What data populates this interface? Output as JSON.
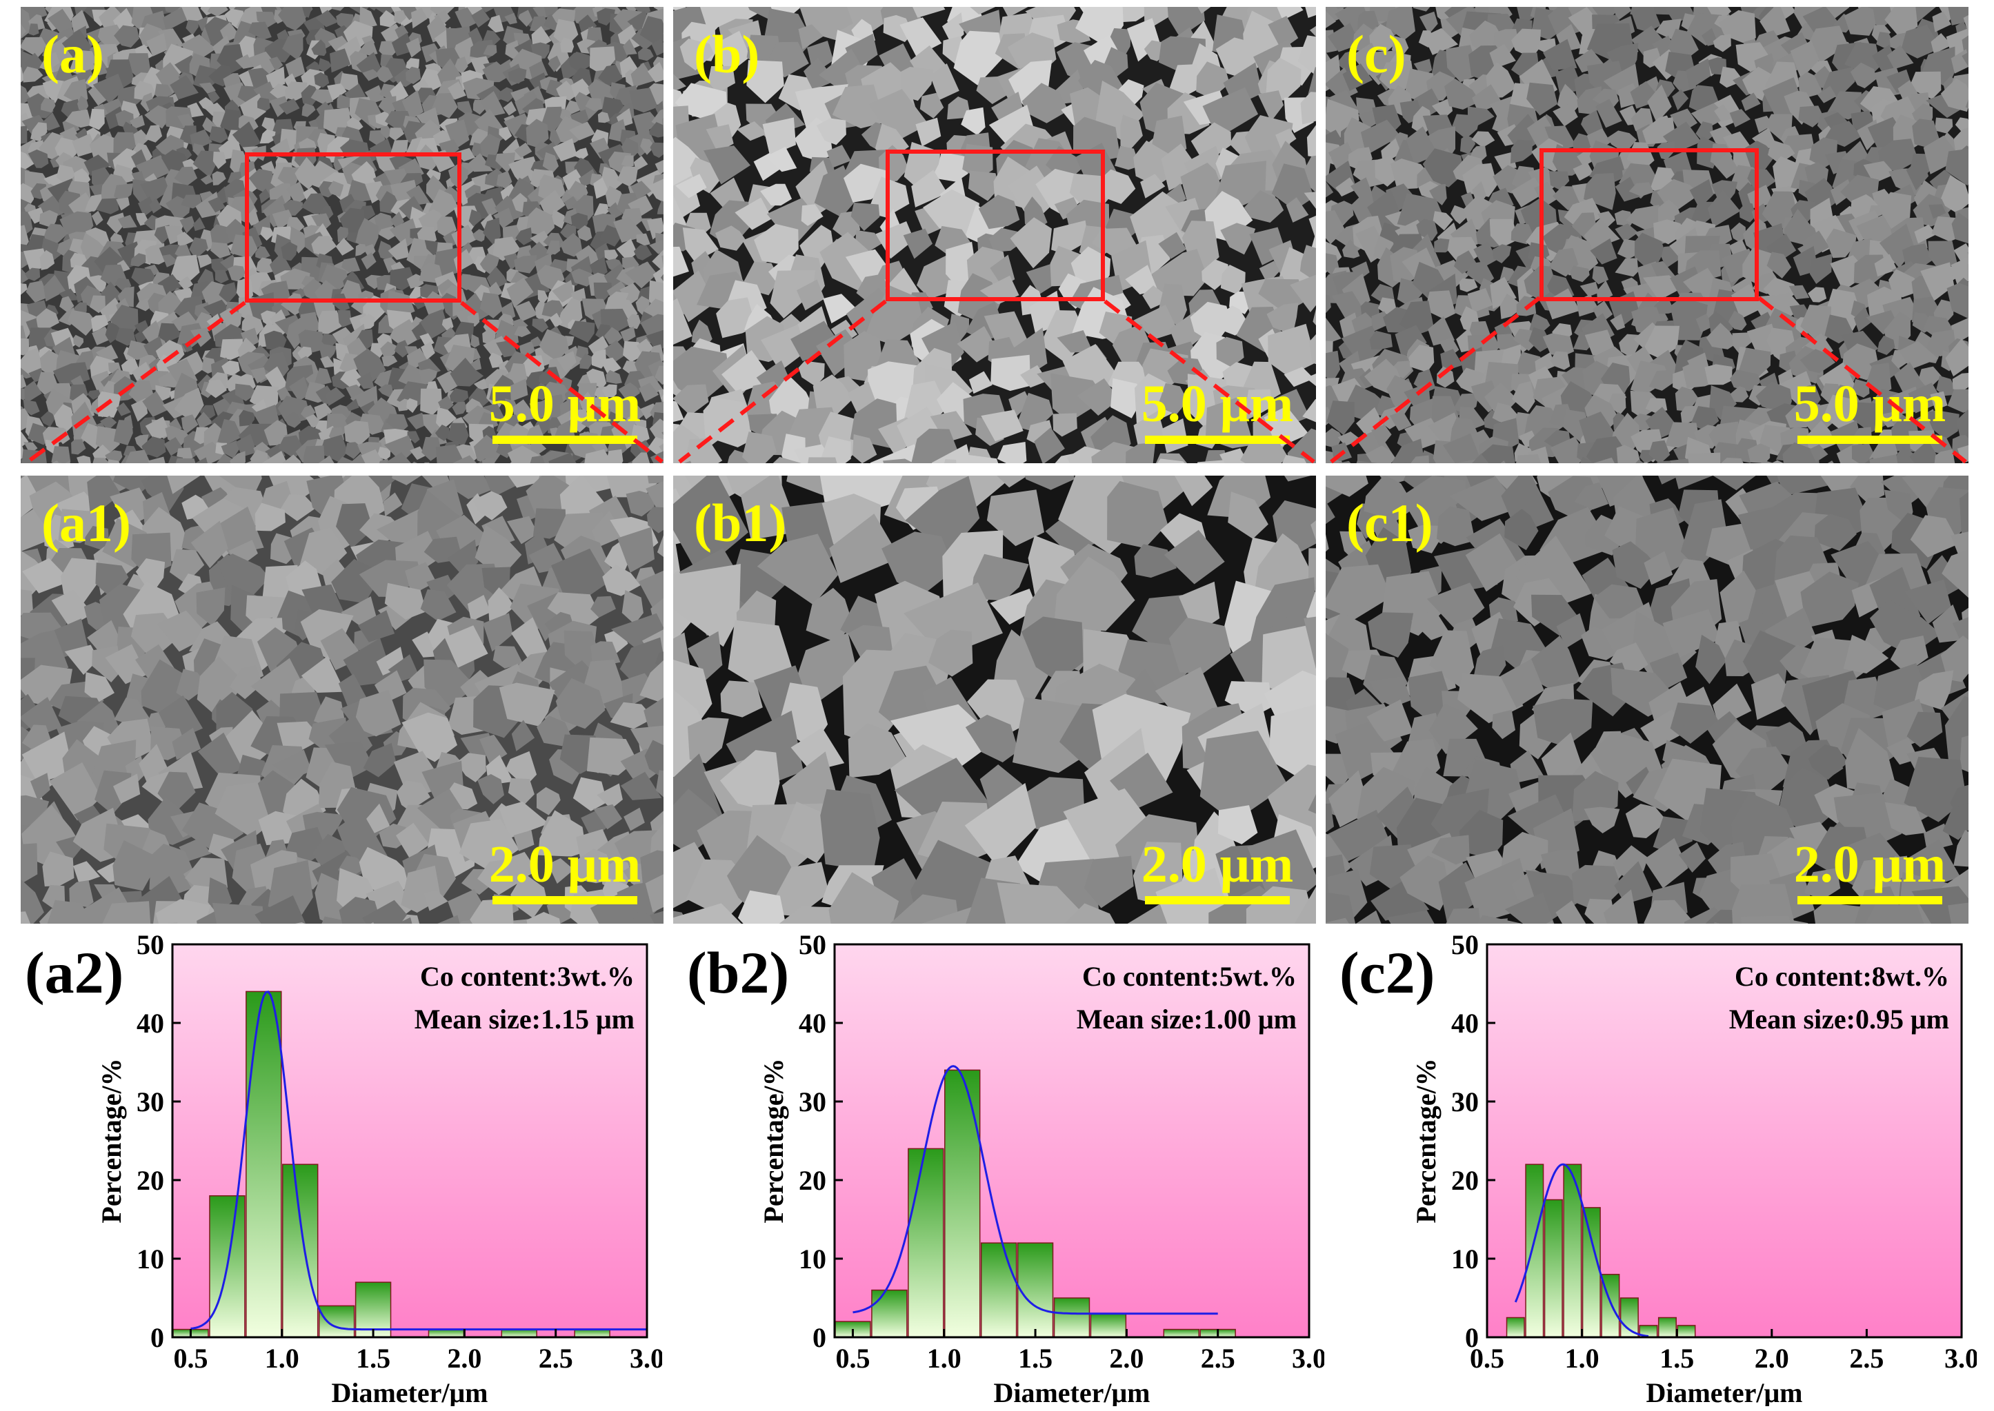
{
  "panels": [
    {
      "id": "a",
      "label": "(a)",
      "scale": "5.0 μm",
      "tone": "dark"
    },
    {
      "id": "b",
      "label": "(b)",
      "scale": "5.0 μm",
      "tone": "light"
    },
    {
      "id": "c",
      "label": "(c)",
      "scale": "5.0 μm",
      "tone": "mid"
    },
    {
      "id": "a1",
      "label": "(a1)",
      "scale": "2.0 μm",
      "tone": "dark"
    },
    {
      "id": "b1",
      "label": "(b1)",
      "scale": "2.0 μm",
      "tone": "light"
    },
    {
      "id": "c1",
      "label": "(c1)",
      "scale": "2.0 μm",
      "tone": "mid"
    }
  ],
  "colors": {
    "label": "#ffff00",
    "roi": "#ff1a1a",
    "bar_top": "#2a9a1a",
    "bar_bottom": "#f2ffe0",
    "fit": "#1e1ee6",
    "bg_top": "#ffd6ee",
    "bg_bottom": "#ff80c8"
  },
  "chart_data": [
    {
      "id": "a2",
      "label": "(a2)",
      "type": "bar",
      "xlabel": "Diameter/μm",
      "ylabel": "Percentage/%",
      "xlim": [
        0.4,
        3.0
      ],
      "ylim": [
        0,
        50
      ],
      "xticks": [
        0.5,
        1.0,
        1.5,
        2.0,
        2.5,
        3.0
      ],
      "yticks": [
        0,
        10,
        20,
        30,
        40,
        50
      ],
      "annotations": [
        "Co content:3wt.%",
        "Mean size:1.15 μm"
      ],
      "bar_width": 0.2,
      "x": [
        0.5,
        0.7,
        0.9,
        1.1,
        1.3,
        1.5,
        1.7,
        1.9,
        2.1,
        2.3,
        2.5,
        2.7,
        2.9
      ],
      "values": [
        1,
        18,
        44,
        22,
        4,
        7,
        0,
        1,
        0,
        1,
        0,
        1,
        0
      ],
      "fit": {
        "peak": 0.92,
        "sigma": 0.12,
        "amp": 43,
        "base": 1
      }
    },
    {
      "id": "b2",
      "label": "(b2)",
      "type": "bar",
      "xlabel": "Diameter/μm",
      "ylabel": "Percentage/%",
      "xlim": [
        0.4,
        3.0
      ],
      "ylim": [
        0,
        50
      ],
      "xticks": [
        0.5,
        1.0,
        1.5,
        2.0,
        2.5,
        3.0
      ],
      "yticks": [
        0,
        10,
        20,
        30,
        40,
        50
      ],
      "annotations": [
        "Co content:5wt.%",
        "Mean size:1.00 μm"
      ],
      "bar_width": 0.2,
      "x": [
        0.5,
        0.7,
        0.9,
        1.1,
        1.3,
        1.5,
        1.7,
        1.9,
        2.1,
        2.3,
        2.5
      ],
      "values": [
        2,
        6,
        24,
        34,
        12,
        12,
        5,
        3,
        0,
        1,
        1
      ],
      "fit": {
        "peak": 1.05,
        "sigma": 0.17,
        "amp": 31.5,
        "base": 3
      },
      "fit_range": [
        0.5,
        2.5
      ]
    },
    {
      "id": "c2",
      "label": "(c2)",
      "type": "bar",
      "xlabel": "Diameter/μm",
      "ylabel": "Percentage/%",
      "xlim": [
        0.5,
        3.0
      ],
      "ylim": [
        0,
        50
      ],
      "xticks": [
        0.5,
        1.0,
        1.5,
        2.0,
        2.5,
        3.0
      ],
      "yticks": [
        0,
        10,
        20,
        30,
        40,
        50
      ],
      "annotations": [
        "Co content:8wt.%",
        "Mean size:0.95 μm"
      ],
      "bar_width": 0.1,
      "x": [
        0.65,
        0.75,
        0.85,
        0.95,
        1.05,
        1.15,
        1.25,
        1.35,
        1.45,
        1.55
      ],
      "values": [
        2.5,
        22,
        17.5,
        22,
        16.5,
        8,
        5,
        1.5,
        2.5,
        1.5
      ],
      "fit": {
        "peak": 0.9,
        "sigma": 0.14,
        "amp": 22,
        "base": 0
      },
      "fit_range": [
        0.65,
        1.35
      ]
    }
  ]
}
